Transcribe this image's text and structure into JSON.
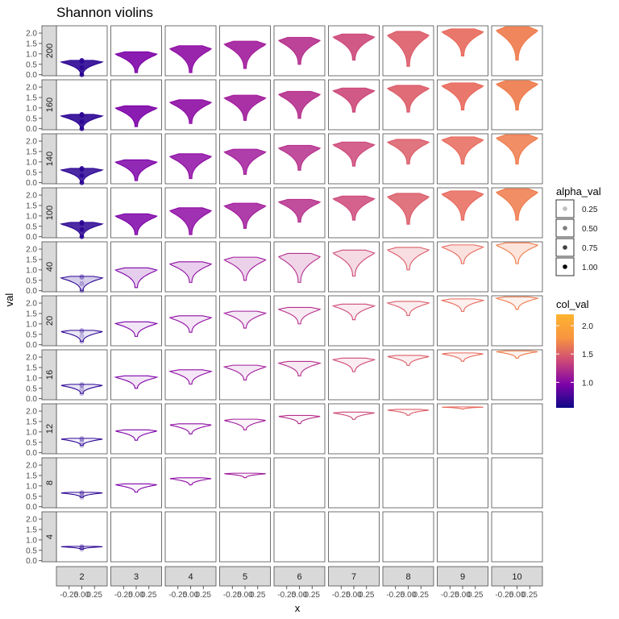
{
  "chart_data": {
    "type": "violin-facet-grid",
    "title": "Shannon violins",
    "xlabel": "x",
    "ylabel": "val",
    "ylim": [
      -0.05,
      2.35
    ],
    "yticks": [
      0.0,
      0.5,
      1.0,
      1.5,
      2.0
    ],
    "ytick_labels": [
      "0.0",
      "0.5",
      "1.0",
      "1.5",
      "2.0"
    ],
    "xlim": [
      -0.5,
      0.5
    ],
    "xticks": [
      -0.25,
      0.0,
      0.25
    ],
    "xtick_labels": [
      "-0.25",
      "0.00",
      "0.25"
    ],
    "columns": [
      "2",
      "3",
      "4",
      "5",
      "6",
      "7",
      "8",
      "9",
      "10"
    ],
    "rows": [
      "200",
      "160",
      "140",
      "100",
      "40",
      "20",
      "16",
      "12",
      "8",
      "4"
    ],
    "alpha_by_row": {
      "200": 0.9,
      "160": 0.9,
      "140": 0.85,
      "100": 0.85,
      "40": 0.2,
      "20": 0.1,
      "16": 0.1,
      "12": 0.05,
      "8": 0.05,
      "4": 0.0
    },
    "legend_alpha": {
      "title": "alpha_val",
      "labels": [
        "0.25",
        "0.50",
        "0.75",
        "1.00"
      ],
      "values": [
        0.25,
        0.5,
        0.75,
        1.0
      ]
    },
    "legend_color": {
      "title": "col_val",
      "tick_labels": [
        "1.0",
        "1.5",
        "2.0"
      ],
      "tick_values": [
        1.0,
        1.5,
        2.0
      ],
      "range": [
        0.55,
        2.2
      ],
      "colors": [
        "#0d0887",
        "#7e03a8",
        "#cc4778",
        "#f89540",
        "#fdb42f"
      ]
    },
    "cells": [
      {
        "row": "200",
        "col": "2",
        "min": 0.0,
        "max": 0.69,
        "color": "#2c0594"
      },
      {
        "row": "200",
        "col": "3",
        "min": 0.1,
        "max": 1.1,
        "color": "#7e03a8"
      },
      {
        "row": "200",
        "col": "4",
        "min": 0.1,
        "max": 1.39,
        "color": "#8f0da4"
      },
      {
        "row": "200",
        "col": "5",
        "min": 0.3,
        "max": 1.61,
        "color": "#a11b9b"
      },
      {
        "row": "200",
        "col": "6",
        "min": 0.5,
        "max": 1.79,
        "color": "#b52f8c"
      },
      {
        "row": "200",
        "col": "7",
        "min": 0.7,
        "max": 1.95,
        "color": "#cc4778"
      },
      {
        "row": "200",
        "col": "8",
        "min": 0.4,
        "max": 2.08,
        "color": "#db5c68"
      },
      {
        "row": "200",
        "col": "9",
        "min": 0.9,
        "max": 2.2,
        "color": "#e8685b"
      },
      {
        "row": "200",
        "col": "10",
        "min": 0.7,
        "max": 2.3,
        "color": "#ee7a4a"
      },
      {
        "row": "160",
        "col": "2",
        "min": 0.0,
        "max": 0.69,
        "color": "#2c0594"
      },
      {
        "row": "160",
        "col": "3",
        "min": 0.1,
        "max": 1.1,
        "color": "#7e03a8"
      },
      {
        "row": "160",
        "col": "4",
        "min": 0.25,
        "max": 1.39,
        "color": "#8f0da4"
      },
      {
        "row": "160",
        "col": "5",
        "min": 0.4,
        "max": 1.61,
        "color": "#a11b9b"
      },
      {
        "row": "160",
        "col": "6",
        "min": 0.5,
        "max": 1.79,
        "color": "#b52f8c"
      },
      {
        "row": "160",
        "col": "7",
        "min": 0.8,
        "max": 1.95,
        "color": "#cc4778"
      },
      {
        "row": "160",
        "col": "8",
        "min": 0.8,
        "max": 2.08,
        "color": "#db5c68"
      },
      {
        "row": "160",
        "col": "9",
        "min": 0.9,
        "max": 2.2,
        "color": "#e8685b"
      },
      {
        "row": "160",
        "col": "10",
        "min": 0.9,
        "max": 2.3,
        "color": "#ee7a4a"
      },
      {
        "row": "140",
        "col": "2",
        "min": 0.0,
        "max": 0.69,
        "color": "#2c0594"
      },
      {
        "row": "140",
        "col": "3",
        "min": 0.1,
        "max": 1.1,
        "color": "#7e03a8"
      },
      {
        "row": "140",
        "col": "4",
        "min": 0.2,
        "max": 1.39,
        "color": "#8f0da4"
      },
      {
        "row": "140",
        "col": "5",
        "min": 0.4,
        "max": 1.61,
        "color": "#a11b9b"
      },
      {
        "row": "140",
        "col": "6",
        "min": 0.6,
        "max": 1.79,
        "color": "#b52f8c"
      },
      {
        "row": "140",
        "col": "7",
        "min": 0.8,
        "max": 1.95,
        "color": "#cc4778"
      },
      {
        "row": "140",
        "col": "8",
        "min": 0.9,
        "max": 2.08,
        "color": "#db5c68"
      },
      {
        "row": "140",
        "col": "9",
        "min": 0.9,
        "max": 2.2,
        "color": "#e8685b"
      },
      {
        "row": "140",
        "col": "10",
        "min": 0.9,
        "max": 2.3,
        "color": "#ee7a4a"
      },
      {
        "row": "100",
        "col": "2",
        "min": 0.0,
        "max": 0.69,
        "color": "#2c0594"
      },
      {
        "row": "100",
        "col": "3",
        "min": 0.1,
        "max": 1.1,
        "color": "#7e03a8"
      },
      {
        "row": "100",
        "col": "4",
        "min": 0.1,
        "max": 1.39,
        "color": "#8f0da4"
      },
      {
        "row": "100",
        "col": "5",
        "min": 0.4,
        "max": 1.61,
        "color": "#a11b9b"
      },
      {
        "row": "100",
        "col": "6",
        "min": 0.7,
        "max": 1.79,
        "color": "#b52f8c"
      },
      {
        "row": "100",
        "col": "7",
        "min": 0.8,
        "max": 1.95,
        "color": "#cc4778"
      },
      {
        "row": "100",
        "col": "8",
        "min": 0.6,
        "max": 2.08,
        "color": "#db5c68"
      },
      {
        "row": "100",
        "col": "9",
        "min": 0.8,
        "max": 2.2,
        "color": "#e8685b"
      },
      {
        "row": "100",
        "col": "10",
        "min": 0.8,
        "max": 2.3,
        "color": "#ee7a4a"
      },
      {
        "row": "40",
        "col": "2",
        "min": 0.0,
        "max": 0.69,
        "color": "#2c0594"
      },
      {
        "row": "40",
        "col": "3",
        "min": 0.15,
        "max": 1.1,
        "color": "#7e03a8"
      },
      {
        "row": "40",
        "col": "4",
        "min": 0.4,
        "max": 1.39,
        "color": "#8f0da4"
      },
      {
        "row": "40",
        "col": "5",
        "min": 0.5,
        "max": 1.61,
        "color": "#a11b9b"
      },
      {
        "row": "40",
        "col": "6",
        "min": 0.4,
        "max": 1.79,
        "color": "#b52f8c"
      },
      {
        "row": "40",
        "col": "7",
        "min": 0.7,
        "max": 1.95,
        "color": "#cc4778"
      },
      {
        "row": "40",
        "col": "8",
        "min": 1.0,
        "max": 2.08,
        "color": "#db5c68"
      },
      {
        "row": "40",
        "col": "9",
        "min": 1.3,
        "max": 2.2,
        "color": "#e8685b"
      },
      {
        "row": "40",
        "col": "10",
        "min": 1.3,
        "max": 2.3,
        "color": "#ee7a4a"
      },
      {
        "row": "20",
        "col": "2",
        "min": 0.15,
        "max": 0.69,
        "color": "#2c0594"
      },
      {
        "row": "20",
        "col": "3",
        "min": 0.4,
        "max": 1.1,
        "color": "#7e03a8"
      },
      {
        "row": "20",
        "col": "4",
        "min": 0.6,
        "max": 1.39,
        "color": "#8f0da4"
      },
      {
        "row": "20",
        "col": "5",
        "min": 0.8,
        "max": 1.61,
        "color": "#a11b9b"
      },
      {
        "row": "20",
        "col": "6",
        "min": 1.0,
        "max": 1.79,
        "color": "#b52f8c"
      },
      {
        "row": "20",
        "col": "7",
        "min": 1.2,
        "max": 1.95,
        "color": "#cc4778"
      },
      {
        "row": "20",
        "col": "8",
        "min": 1.4,
        "max": 2.08,
        "color": "#db5c68"
      },
      {
        "row": "20",
        "col": "9",
        "min": 1.6,
        "max": 2.2,
        "color": "#e8685b"
      },
      {
        "row": "20",
        "col": "10",
        "min": 1.7,
        "max": 2.3,
        "color": "#ee7a4a"
      },
      {
        "row": "16",
        "col": "2",
        "min": 0.25,
        "max": 0.69,
        "color": "#2c0594"
      },
      {
        "row": "16",
        "col": "3",
        "min": 0.5,
        "max": 1.1,
        "color": "#7e03a8"
      },
      {
        "row": "16",
        "col": "4",
        "min": 0.7,
        "max": 1.39,
        "color": "#8f0da4"
      },
      {
        "row": "16",
        "col": "5",
        "min": 0.9,
        "max": 1.61,
        "color": "#a11b9b"
      },
      {
        "row": "16",
        "col": "6",
        "min": 1.1,
        "max": 1.79,
        "color": "#b52f8c"
      },
      {
        "row": "16",
        "col": "7",
        "min": 1.3,
        "max": 1.95,
        "color": "#cc4778"
      },
      {
        "row": "16",
        "col": "8",
        "min": 1.6,
        "max": 2.08,
        "color": "#db5c68"
      },
      {
        "row": "16",
        "col": "9",
        "min": 1.8,
        "max": 2.2,
        "color": "#e8685b"
      },
      {
        "row": "16",
        "col": "10",
        "min": 1.95,
        "max": 2.3,
        "color": "#ee7a4a"
      },
      {
        "row": "12",
        "col": "2",
        "min": 0.35,
        "max": 0.69,
        "color": "#2c0594"
      },
      {
        "row": "12",
        "col": "3",
        "min": 0.6,
        "max": 1.1,
        "color": "#7e03a8"
      },
      {
        "row": "12",
        "col": "4",
        "min": 0.9,
        "max": 1.39,
        "color": "#8f0da4"
      },
      {
        "row": "12",
        "col": "5",
        "min": 1.1,
        "max": 1.61,
        "color": "#a11b9b"
      },
      {
        "row": "12",
        "col": "6",
        "min": 1.4,
        "max": 1.79,
        "color": "#b52f8c"
      },
      {
        "row": "12",
        "col": "7",
        "min": 1.6,
        "max": 1.95,
        "color": "#cc4778"
      },
      {
        "row": "12",
        "col": "8",
        "min": 1.8,
        "max": 2.08,
        "color": "#db5c68"
      },
      {
        "row": "12",
        "col": "9",
        "min": 2.1,
        "max": 2.2,
        "color": "#e8685b"
      },
      {
        "row": "8",
        "col": "2",
        "min": 0.45,
        "max": 0.69,
        "color": "#2c0594"
      },
      {
        "row": "8",
        "col": "3",
        "min": 0.7,
        "max": 1.1,
        "color": "#7e03a8"
      },
      {
        "row": "8",
        "col": "4",
        "min": 1.05,
        "max": 1.39,
        "color": "#8f0da4"
      },
      {
        "row": "8",
        "col": "5",
        "min": 1.4,
        "max": 1.61,
        "color": "#a11b9b"
      },
      {
        "row": "4",
        "col": "2",
        "min": 0.55,
        "max": 0.69,
        "color": "#2c0594"
      }
    ]
  }
}
